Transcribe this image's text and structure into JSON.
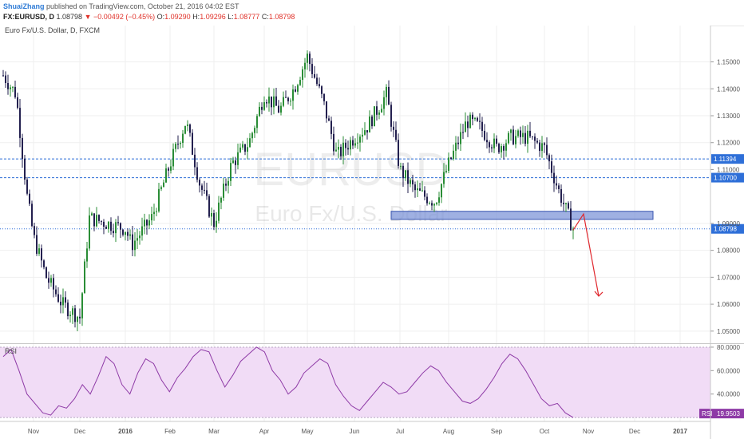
{
  "header": {
    "author": "ShuaiZhang",
    "published_text": "published on TradingView.com, October 21, 2016 04:02 EST",
    "symbol": "FX:EURUSD, D",
    "last": "1.08798",
    "change_arrow": "▼",
    "change": "−0.00492 (−0.45%)",
    "o_label": "O:",
    "o_value": "1.09290",
    "h_label": "H:",
    "h_value": "1.09296",
    "l_label": "L:",
    "l_value": "1.08777",
    "c_label": "C:",
    "c_value": "1.08798"
  },
  "main_pane": {
    "legend": "Euro Fx/U.S. Dollar, D, FXCM",
    "watermark_symbol": "EURUSD",
    "watermark_name": "Euro Fx/U.S. Dollar"
  },
  "rsi_pane": {
    "label": "RSI",
    "value_label": "RSI",
    "value": "19.9503"
  },
  "colors": {
    "up": "#2a8d36",
    "down": "#23204f",
    "level": "#2e6fd8",
    "zone_fill": "#7f95d8",
    "zone_stroke": "#3a56b0",
    "arrow": "#e0282e",
    "rsi_line": "#8e3aa6",
    "rsi_bg": "#f1dcf6"
  },
  "chart_data": [
    {
      "type": "candlestick",
      "title": "Euro Fx/U.S. Dollar, D, FXCM",
      "x_tick_labels": [
        "Nov",
        "Dec",
        "2016",
        "Feb",
        "Mar",
        "Apr",
        "May",
        "Jun",
        "Jul",
        "Aug",
        "Sep",
        "Oct",
        "Nov",
        "Dec",
        "2017"
      ],
      "y_tick_labels": [
        "1.15000",
        "1.14000",
        "1.13000",
        "1.12000",
        "1.11000",
        "1.09000",
        "1.08000",
        "1.07000",
        "1.06000",
        "1.05000"
      ],
      "ylim": [
        1.0455,
        1.1635
      ],
      "horizontal_levels": [
        {
          "value": 1.11394,
          "label": "1.11394",
          "style": "dashed"
        },
        {
          "value": 1.107,
          "label": "1.10700",
          "style": "dashed"
        },
        {
          "value": 1.08798,
          "label": "1.08798",
          "style": "dotted",
          "current_price": true
        }
      ],
      "zone": {
        "from_x": "Jun",
        "to_x": "Nov",
        "low": 1.0915,
        "high": 1.0945
      },
      "price_path": [
        {
          "x": "Oct 2015",
          "y": 1.145
        },
        {
          "x": "mid Oct",
          "y": 1.138
        },
        {
          "x": "late Oct",
          "y": 1.1
        },
        {
          "x": "Nov",
          "y": 1.085
        },
        {
          "x": "mid Nov",
          "y": 1.07
        },
        {
          "x": "late Nov",
          "y": 1.06
        },
        {
          "x": "Dec",
          "y": 1.055
        },
        {
          "x": "mid Dec",
          "y": 1.092
        },
        {
          "x": "2016",
          "y": 1.088
        },
        {
          "x": "mid Jan",
          "y": 1.082
        },
        {
          "x": "late Jan",
          "y": 1.092
        },
        {
          "x": "Feb",
          "y": 1.112
        },
        {
          "x": "mid Feb",
          "y": 1.128
        },
        {
          "x": "late Feb",
          "y": 1.105
        },
        {
          "x": "Mar",
          "y": 1.09
        },
        {
          "x": "mid Mar",
          "y": 1.112
        },
        {
          "x": "late Mar",
          "y": 1.12
        },
        {
          "x": "Apr",
          "y": 1.138
        },
        {
          "x": "mid Apr",
          "y": 1.132
        },
        {
          "x": "late Apr",
          "y": 1.14
        },
        {
          "x": "May",
          "y": 1.152
        },
        {
          "x": "mid May",
          "y": 1.135
        },
        {
          "x": "late May",
          "y": 1.115
        },
        {
          "x": "Jun",
          "y": 1.122
        },
        {
          "x": "mid Jun",
          "y": 1.126
        },
        {
          "x": "late Jun",
          "y": 1.138
        },
        {
          "x": "Jul",
          "y": 1.11
        },
        {
          "x": "mid Jul",
          "y": 1.102
        },
        {
          "x": "late Jul",
          "y": 1.098
        },
        {
          "x": "Aug",
          "y": 1.112
        },
        {
          "x": "mid Aug",
          "y": 1.128
        },
        {
          "x": "late Aug",
          "y": 1.126
        },
        {
          "x": "Sep",
          "y": 1.118
        },
        {
          "x": "mid Sep",
          "y": 1.122
        },
        {
          "x": "late Sep",
          "y": 1.122
        },
        {
          "x": "Oct",
          "y": 1.118
        },
        {
          "x": "mid Oct",
          "y": 1.102
        },
        {
          "x": "late Oct",
          "y": 1.088
        }
      ],
      "projection_arrow": [
        {
          "x": "late Oct",
          "y": 1.0875
        },
        {
          "x": "end Oct",
          "y": 1.0935
        },
        {
          "x": "Nov",
          "y": 1.063
        }
      ]
    },
    {
      "type": "line",
      "title": "RSI",
      "y_tick_labels": [
        "80.0000",
        "60.0000",
        "40.0000"
      ],
      "ylim": [
        18,
        82
      ],
      "band": [
        20,
        80
      ],
      "series": [
        {
          "name": "RSI",
          "values": [
            72,
            78,
            60,
            40,
            32,
            24,
            22,
            30,
            28,
            36,
            48,
            40,
            55,
            72,
            66,
            48,
            40,
            58,
            70,
            66,
            52,
            42,
            54,
            62,
            72,
            78,
            76,
            60,
            46,
            56,
            68,
            74,
            80,
            76,
            60,
            52,
            40,
            46,
            58,
            64,
            70,
            66,
            48,
            38,
            30,
            26,
            34,
            42,
            50,
            46,
            40,
            42,
            50,
            58,
            64,
            60,
            50,
            42,
            34,
            32,
            36,
            44,
            54,
            66,
            74,
            70,
            60,
            48,
            36,
            30,
            32,
            24,
            20
          ]
        }
      ]
    }
  ]
}
